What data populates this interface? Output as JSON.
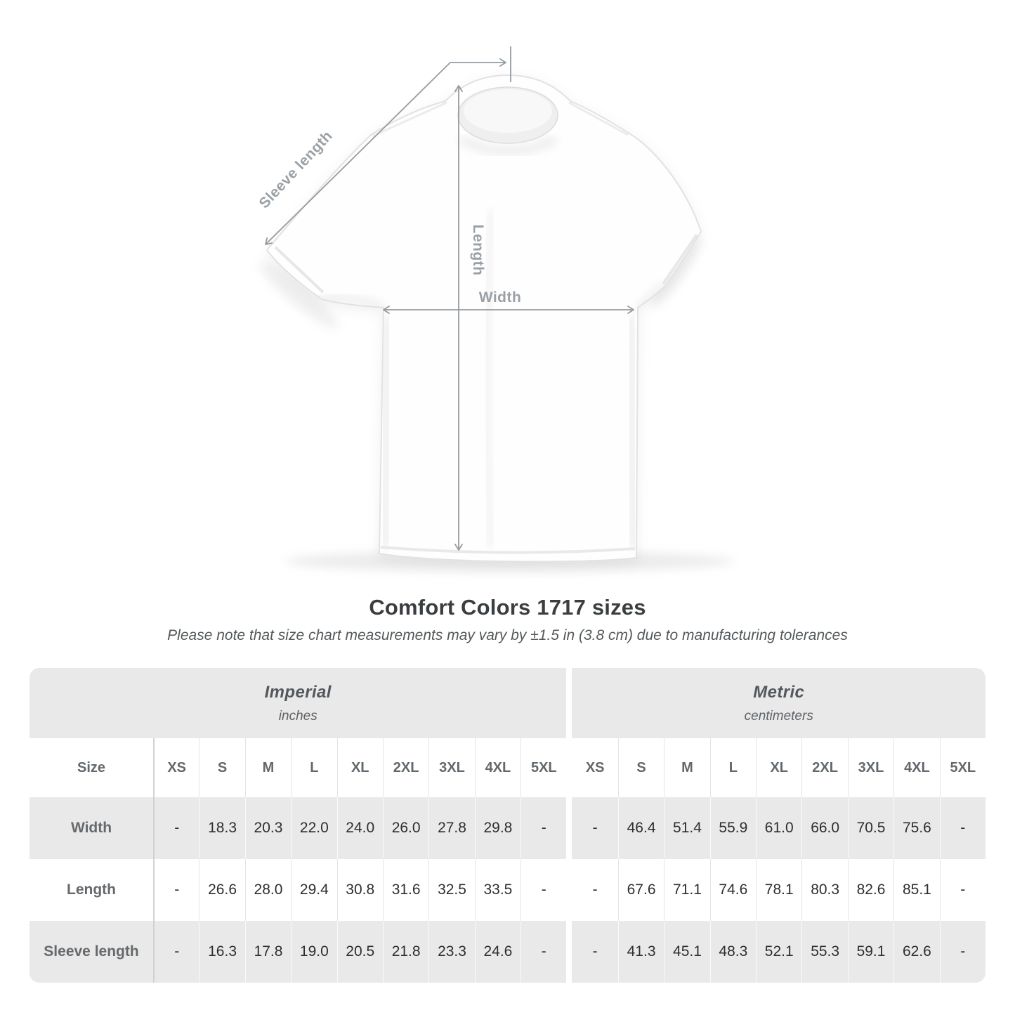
{
  "diagram": {
    "sleeve_label": "Sleeve length",
    "length_label": "Length",
    "width_label": "Width"
  },
  "chart_data": {
    "type": "table",
    "title": "Comfort Colors 1717 sizes",
    "note": "Please note that size chart measurements may vary by ±1.5 in (3.8 cm) due to manufacturing tolerances",
    "corner_label": "Size",
    "unit_groups": [
      {
        "label": "Imperial",
        "unit": "inches"
      },
      {
        "label": "Metric",
        "unit": "centimeters"
      }
    ],
    "sizes": [
      "XS",
      "S",
      "M",
      "L",
      "XL",
      "2XL",
      "3XL",
      "4XL",
      "5XL"
    ],
    "rows": [
      {
        "label": "Width",
        "imperial": [
          "-",
          "18.3",
          "20.3",
          "22.0",
          "24.0",
          "26.0",
          "27.8",
          "29.8",
          "-"
        ],
        "metric": [
          "-",
          "46.4",
          "51.4",
          "55.9",
          "61.0",
          "66.0",
          "70.5",
          "75.6",
          "-"
        ]
      },
      {
        "label": "Length",
        "imperial": [
          "-",
          "26.6",
          "28.0",
          "29.4",
          "30.8",
          "31.6",
          "32.5",
          "33.5",
          "-"
        ],
        "metric": [
          "-",
          "67.6",
          "71.1",
          "74.6",
          "78.1",
          "80.3",
          "82.6",
          "85.1",
          "-"
        ]
      },
      {
        "label": "Sleeve length",
        "imperial": [
          "-",
          "16.3",
          "17.8",
          "19.0",
          "20.5",
          "21.8",
          "23.3",
          "24.6",
          "-"
        ],
        "metric": [
          "-",
          "41.3",
          "45.1",
          "48.3",
          "52.1",
          "55.3",
          "59.1",
          "62.6",
          "-"
        ]
      }
    ]
  },
  "colors": {
    "table_shade": "#e9e9e9",
    "arrow": "#969ba0",
    "value_text": "#2e2e2e",
    "label_text": "#63686c",
    "title_text": "#3b3e40"
  }
}
